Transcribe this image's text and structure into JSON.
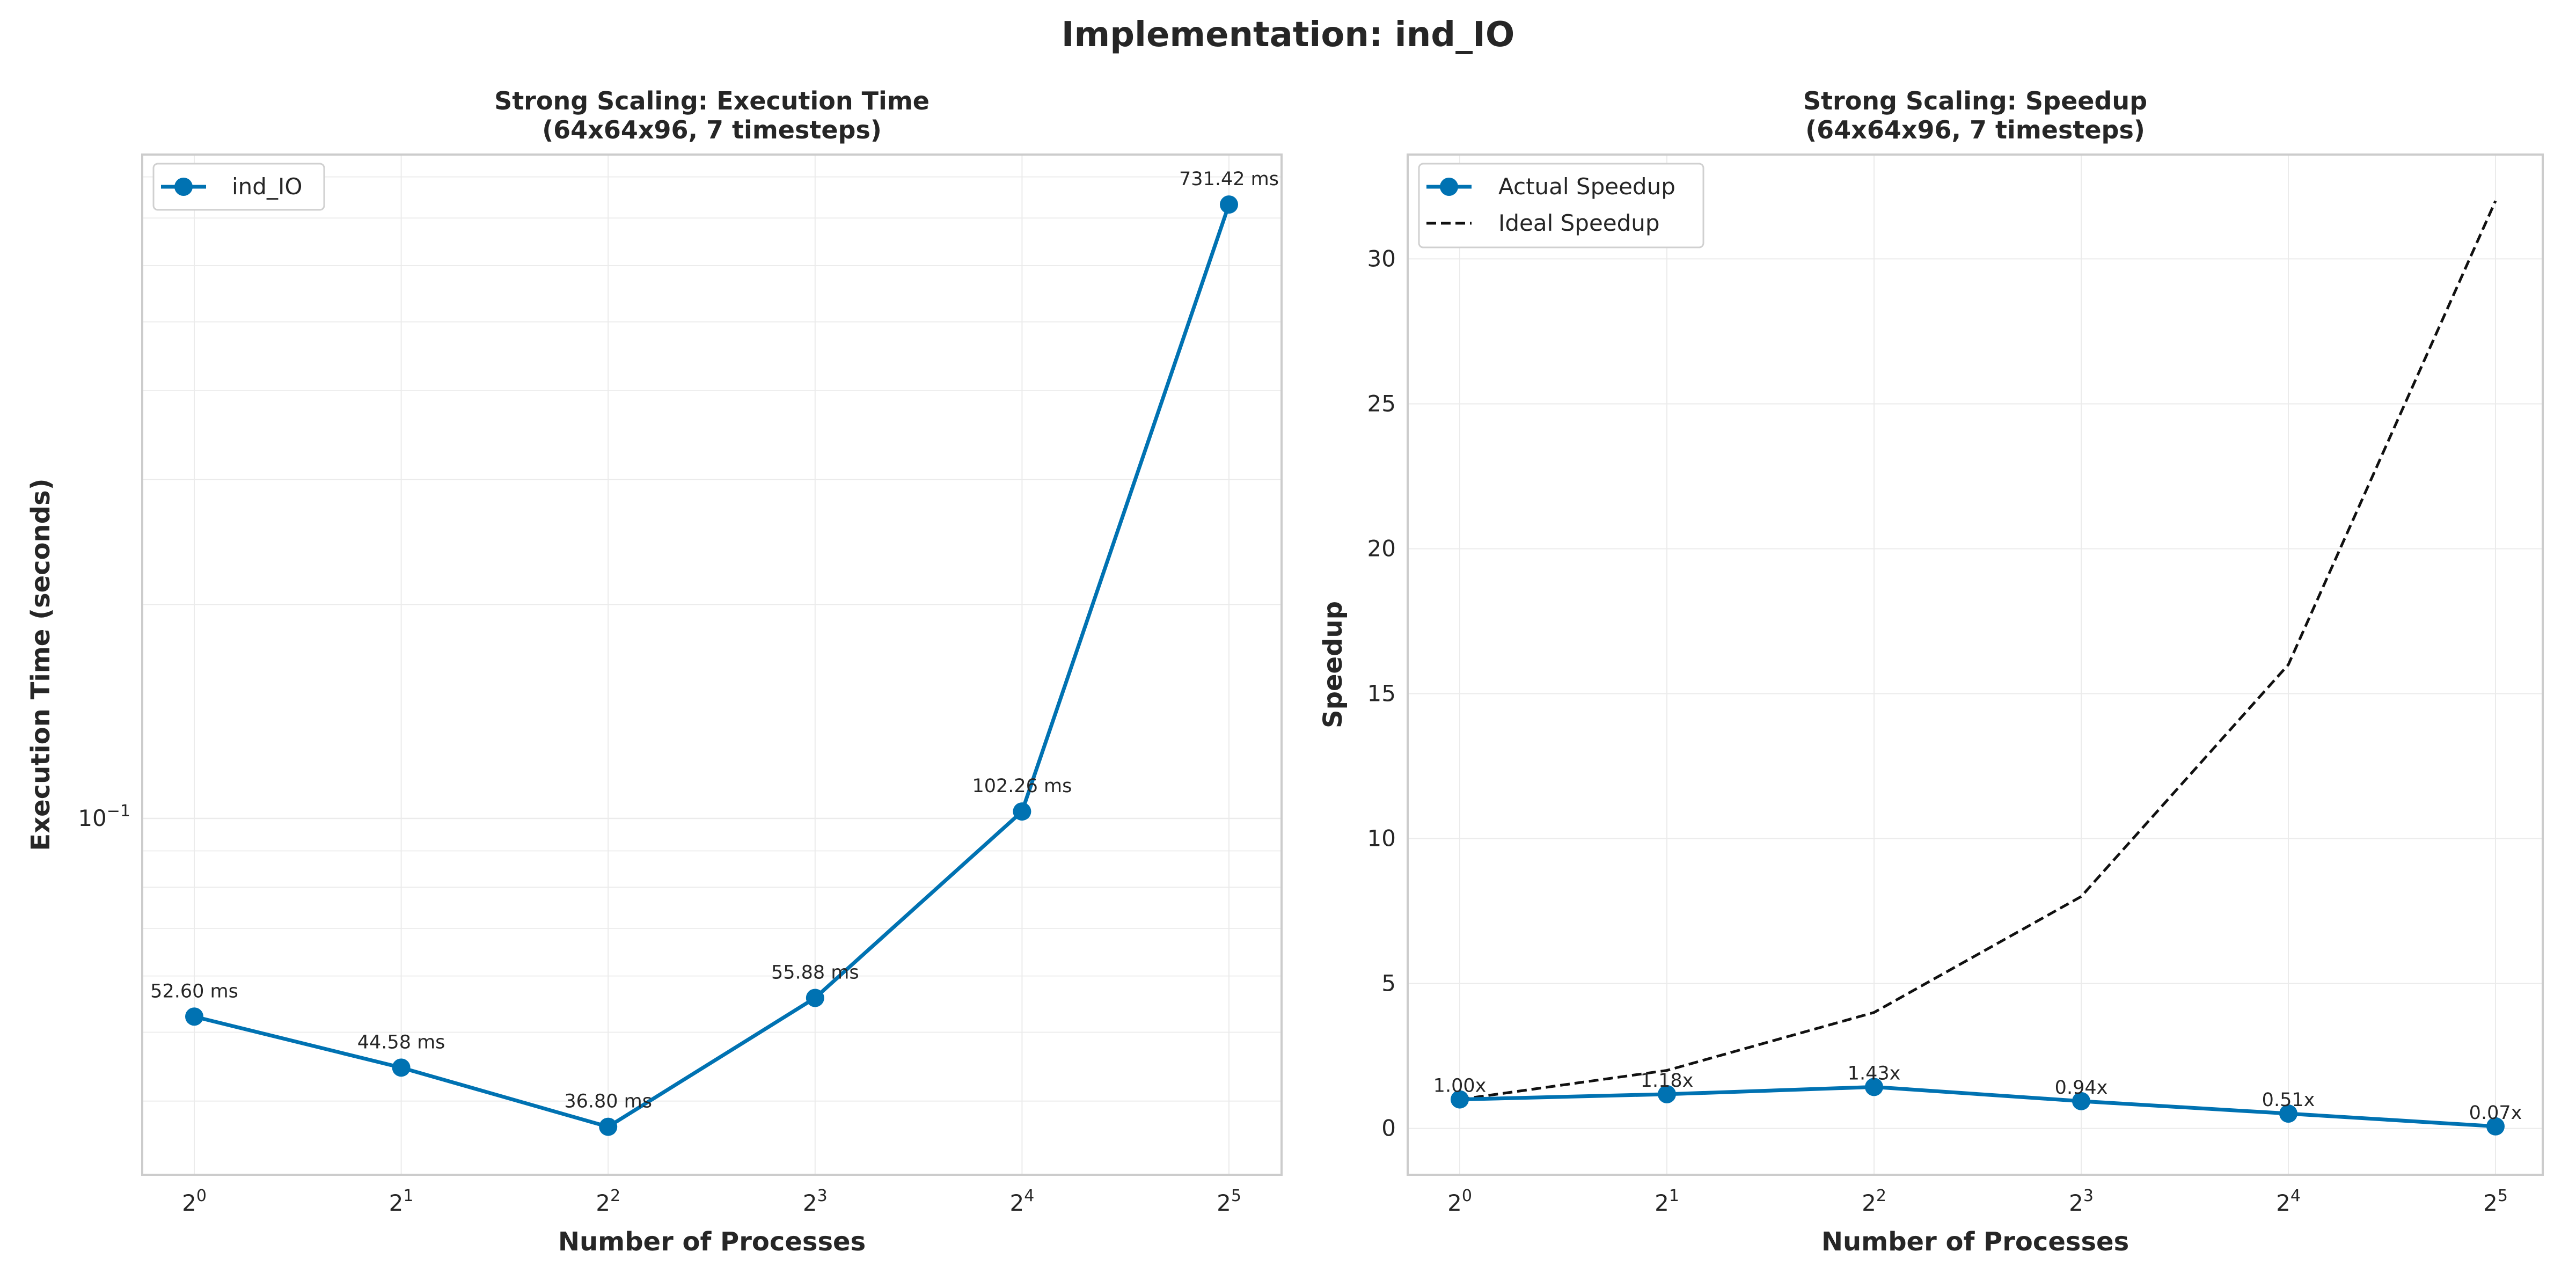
{
  "figure_title": "Implementation: ind_IO",
  "colors": {
    "actual": "#0072B2",
    "ideal": "#111111",
    "grid": "#ebebeb",
    "frame": "#cccccc"
  },
  "chart_data": [
    {
      "type": "line",
      "title_line1": "Strong Scaling: Execution Time",
      "title_line2": "(64x64x96, 7 timesteps)",
      "xlabel": "Number of Processes",
      "ylabel": "Execution Time (seconds)",
      "x_scale": "log2",
      "y_scale": "log10",
      "x": [
        1,
        2,
        4,
        8,
        16,
        32
      ],
      "x_tick_labels": [
        {
          "base": "2",
          "exp": "0"
        },
        {
          "base": "2",
          "exp": "1"
        },
        {
          "base": "2",
          "exp": "2"
        },
        {
          "base": "2",
          "exp": "3"
        },
        {
          "base": "2",
          "exp": "4"
        },
        {
          "base": "2",
          "exp": "5"
        }
      ],
      "y_tick_labels": [
        {
          "base": "10",
          "exp": "−1",
          "value": 0.1
        }
      ],
      "ylim": [
        0.0315,
        0.86
      ],
      "grid": true,
      "legend_position": "top-left",
      "series": [
        {
          "name": "ind_IO",
          "values": [
            0.0526,
            0.04458,
            0.0368,
            0.05588,
            0.10226,
            0.73142
          ],
          "labels": [
            "52.60 ms",
            "44.58 ms",
            "36.80 ms",
            "55.88 ms",
            "102.26 ms",
            "731.42 ms"
          ]
        }
      ]
    },
    {
      "type": "line",
      "title_line1": "Strong Scaling: Speedup",
      "title_line2": "(64x64x96, 7 timesteps)",
      "xlabel": "Number of Processes",
      "ylabel": "Speedup",
      "x_scale": "log2",
      "x": [
        1,
        2,
        4,
        8,
        16,
        32
      ],
      "x_tick_labels": [
        {
          "base": "2",
          "exp": "0"
        },
        {
          "base": "2",
          "exp": "1"
        },
        {
          "base": "2",
          "exp": "2"
        },
        {
          "base": "2",
          "exp": "3"
        },
        {
          "base": "2",
          "exp": "4"
        },
        {
          "base": "2",
          "exp": "5"
        }
      ],
      "y_ticks": [
        0,
        5,
        10,
        15,
        20,
        25,
        30
      ],
      "y_tick_labels": [
        "0",
        "5",
        "10",
        "15",
        "20",
        "25",
        "30"
      ],
      "ylim": [
        -1.6,
        33.6
      ],
      "grid": true,
      "legend_position": "top-left",
      "series": [
        {
          "name": "Actual Speedup",
          "values": [
            1.0,
            1.18,
            1.43,
            0.94,
            0.51,
            0.07
          ],
          "labels": [
            "1.00x",
            "1.18x",
            "1.43x",
            "0.94x",
            "0.51x",
            "0.07x"
          ]
        },
        {
          "name": "Ideal Speedup",
          "values": [
            1,
            2,
            4,
            8,
            16,
            32
          ]
        }
      ]
    }
  ]
}
